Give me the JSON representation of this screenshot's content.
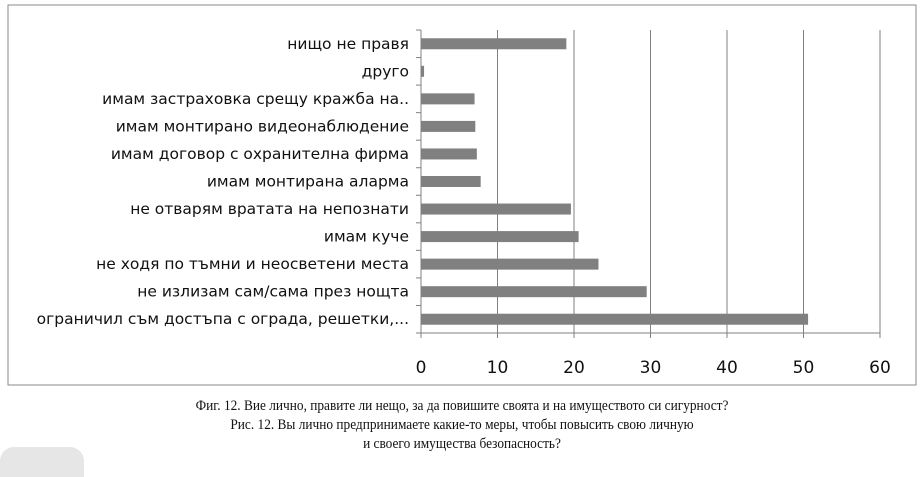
{
  "chart_data": {
    "type": "bar",
    "orientation": "horizontal",
    "categories": [
      "нищо не правя",
      "друго",
      "имам застраховка срещу кражба на..",
      "имам монтирано видеонаблюдение",
      "имам договор с охранителна фирма",
      "имам монтирана аларма",
      "не отварям вратата на непознати",
      "имам куче",
      "не ходя по тъмни и неосветени места",
      "не излизам сам/сама през нощта",
      "ограничил съм достъпа с ограда, решетки,..."
    ],
    "values": [
      19.0,
      0.4,
      7.0,
      7.1,
      7.3,
      7.8,
      19.6,
      20.6,
      23.2,
      29.5,
      50.6
    ],
    "xlim": [
      0,
      60
    ],
    "xticks": [
      "0",
      "10",
      "20",
      "30",
      "40",
      "50",
      "60"
    ],
    "grid": true,
    "bar_color": "#808080",
    "title": "",
    "xlabel": "",
    "ylabel": ""
  },
  "caption": {
    "line1": "Фиг. 12. Вие лично, правите ли нещо, за да повишите своята и на имуществото си сигурност?",
    "line2": "Рис. 12. Вы лично предпринимаете какие-то меры, чтобы повысить свою личную",
    "line3": "и своего имущества безопасность?"
  }
}
